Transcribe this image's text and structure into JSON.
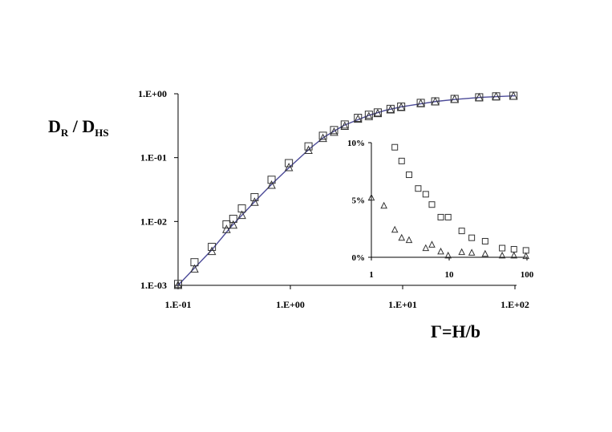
{
  "chart_data": [
    {
      "type": "scatter",
      "title": "",
      "xscale": "log",
      "yscale": "log",
      "xlim": [
        0.1,
        100
      ],
      "ylim": [
        0.001,
        1
      ],
      "x_tick_labels": [
        "1.E-01",
        "1.E+00",
        "1.E+01",
        "1.E+02"
      ],
      "y_tick_labels": [
        "1.E-03",
        "1.E-02",
        "1.E-01",
        "1.E+00"
      ],
      "xlabel": "Γ=H/b",
      "ylabel": {
        "main": "D",
        "sub1": "R",
        "mid": " / D",
        "sub2": "HS"
      },
      "grid": false,
      "legend": "none",
      "series": [
        {
          "marker": "square",
          "points": [
            [
              0.1,
              0.00105
            ],
            [
              0.14,
              0.0023
            ],
            [
              0.2,
              0.004
            ],
            [
              0.27,
              0.009
            ],
            [
              0.31,
              0.011
            ],
            [
              0.37,
              0.016
            ],
            [
              0.48,
              0.024
            ],
            [
              0.68,
              0.045
            ],
            [
              0.97,
              0.082
            ],
            [
              1.45,
              0.15
            ],
            [
              1.95,
              0.22
            ],
            [
              2.45,
              0.27
            ],
            [
              3.05,
              0.33
            ],
            [
              4.0,
              0.42
            ],
            [
              5.0,
              0.47
            ],
            [
              6.0,
              0.51
            ],
            [
              7.8,
              0.58
            ],
            [
              9.7,
              0.63
            ],
            [
              14.5,
              0.72
            ],
            [
              19.5,
              0.76
            ],
            [
              29.0,
              0.83
            ],
            [
              48.0,
              0.88
            ],
            [
              68.0,
              0.91
            ],
            [
              97.0,
              0.93
            ]
          ]
        },
        {
          "marker": "triangle",
          "points": [
            [
              0.1,
              0.001
            ],
            [
              0.14,
              0.0018
            ],
            [
              0.2,
              0.0034
            ],
            [
              0.27,
              0.0075
            ],
            [
              0.31,
              0.0088
            ],
            [
              0.37,
              0.0125
            ],
            [
              0.48,
              0.02
            ],
            [
              0.68,
              0.037
            ],
            [
              0.97,
              0.07
            ],
            [
              1.45,
              0.13
            ],
            [
              1.95,
              0.2
            ],
            [
              2.45,
              0.25
            ],
            [
              3.05,
              0.31
            ],
            [
              4.0,
              0.4
            ],
            [
              5.0,
              0.44
            ],
            [
              6.0,
              0.49
            ],
            [
              7.8,
              0.56
            ],
            [
              9.7,
              0.61
            ],
            [
              14.5,
              0.7
            ],
            [
              19.5,
              0.75
            ],
            [
              29.0,
              0.82
            ],
            [
              48.0,
              0.87
            ],
            [
              68.0,
              0.9
            ],
            [
              97.0,
              0.92
            ]
          ]
        }
      ],
      "fit_line": {
        "color": "#4b4a98",
        "points": [
          [
            0.1,
            0.001
          ],
          [
            0.2,
            0.0036
          ],
          [
            0.3,
            0.0085
          ],
          [
            0.5,
            0.022
          ],
          [
            0.7,
            0.04
          ],
          [
            1.0,
            0.073
          ],
          [
            1.5,
            0.14
          ],
          [
            2.0,
            0.21
          ],
          [
            3.0,
            0.32
          ],
          [
            5.0,
            0.46
          ],
          [
            7.0,
            0.55
          ],
          [
            10.0,
            0.63
          ],
          [
            20.0,
            0.76
          ],
          [
            30.0,
            0.82
          ],
          [
            50.0,
            0.88
          ],
          [
            100.0,
            0.93
          ]
        ]
      }
    },
    {
      "type": "scatter",
      "title": "",
      "inset": true,
      "xscale": "log",
      "xlim": [
        1,
        100
      ],
      "ylim": [
        0,
        10
      ],
      "x_tick_labels": [
        "1",
        "10",
        "100"
      ],
      "y_tick_labels": [
        "0%",
        "5%",
        "10%"
      ],
      "legend": "none",
      "series": [
        {
          "marker": "square",
          "points": [
            [
              2.0,
              9.6
            ],
            [
              2.45,
              8.4
            ],
            [
              3.05,
              7.2
            ],
            [
              4.0,
              6.0
            ],
            [
              5.0,
              5.5
            ],
            [
              6.0,
              4.6
            ],
            [
              7.8,
              3.5
            ],
            [
              9.7,
              3.5
            ],
            [
              14.5,
              2.3
            ],
            [
              19.5,
              1.7
            ],
            [
              29.0,
              1.4
            ],
            [
              48.0,
              0.8
            ],
            [
              68.0,
              0.7
            ],
            [
              97.0,
              0.6
            ]
          ]
        },
        {
          "marker": "triangle",
          "points": [
            [
              1.0,
              5.2
            ],
            [
              1.45,
              4.5
            ],
            [
              2.0,
              2.4
            ],
            [
              2.45,
              1.7
            ],
            [
              3.05,
              1.5
            ],
            [
              5.0,
              0.8
            ],
            [
              6.0,
              1.1
            ],
            [
              7.8,
              0.5
            ],
            [
              9.7,
              0.15
            ],
            [
              14.5,
              0.45
            ],
            [
              19.5,
              0.4
            ],
            [
              29.0,
              0.3
            ],
            [
              48.0,
              0.15
            ],
            [
              68.0,
              0.15
            ],
            [
              97.0,
              0.1
            ]
          ]
        }
      ]
    }
  ]
}
